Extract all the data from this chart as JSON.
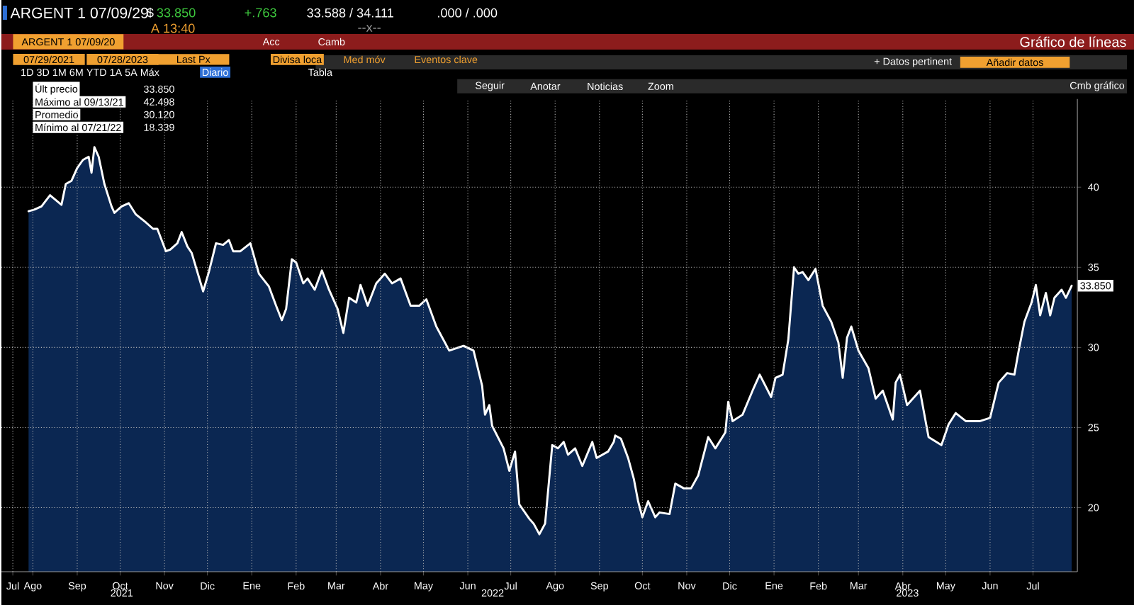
{
  "chart_data": {
    "type": "area",
    "title": "ARGENT 1 07/09/29",
    "subtitle": "Gráfico de líneas",
    "x": [
      "2021-07-29",
      "2021-08-02",
      "2021-08-07",
      "2021-08-13",
      "2021-08-17",
      "2021-08-21",
      "2021-08-24",
      "2021-08-28",
      "2021-09-01",
      "2021-09-05",
      "2021-09-09",
      "2021-09-11",
      "2021-09-13",
      "2021-09-16",
      "2021-09-20",
      "2021-09-25",
      "2021-09-27",
      "2021-10-02",
      "2021-10-07",
      "2021-10-12",
      "2021-10-19",
      "2021-10-24",
      "2021-10-27",
      "2021-11-02",
      "2021-11-05",
      "2021-11-10",
      "2021-11-13",
      "2021-11-17",
      "2021-11-20",
      "2021-11-28",
      "2021-12-02",
      "2021-12-07",
      "2021-12-12",
      "2021-12-16",
      "2021-12-19",
      "2021-12-24",
      "2021-12-31",
      "2022-01-06",
      "2022-01-13",
      "2022-01-18",
      "2022-01-22",
      "2022-01-25",
      "2022-01-29",
      "2022-02-01",
      "2022-02-06",
      "2022-02-09",
      "2022-02-14",
      "2022-02-19",
      "2022-02-24",
      "2022-03-02",
      "2022-03-06",
      "2022-03-10",
      "2022-03-15",
      "2022-03-18",
      "2022-03-23",
      "2022-03-29",
      "2022-04-04",
      "2022-04-09",
      "2022-04-15",
      "2022-04-22",
      "2022-04-28",
      "2022-05-03",
      "2022-05-10",
      "2022-05-19",
      "2022-05-29",
      "2022-06-05",
      "2022-06-11",
      "2022-06-13",
      "2022-06-16",
      "2022-06-18",
      "2022-06-26",
      "2022-06-30",
      "2022-07-04",
      "2022-07-07",
      "2022-07-14",
      "2022-07-17",
      "2022-07-21",
      "2022-07-25",
      "2022-07-30",
      "2022-08-03",
      "2022-08-07",
      "2022-08-10",
      "2022-08-15",
      "2022-08-20",
      "2022-08-27",
      "2022-08-30",
      "2022-09-07",
      "2022-09-11",
      "2022-09-12",
      "2022-09-16",
      "2022-09-21",
      "2022-09-25",
      "2022-09-28",
      "2022-10-01",
      "2022-10-05",
      "2022-10-10",
      "2022-10-13",
      "2022-10-20",
      "2022-10-24",
      "2022-10-30",
      "2022-11-04",
      "2022-11-09",
      "2022-11-16",
      "2022-11-21",
      "2022-11-28",
      "2022-11-30",
      "2022-12-03",
      "2022-12-10",
      "2022-12-17",
      "2022-12-22",
      "2022-12-30",
      "2023-01-02",
      "2023-01-07",
      "2023-01-11",
      "2023-01-15",
      "2023-01-18",
      "2023-01-21",
      "2023-01-25",
      "2023-01-30",
      "2023-02-04",
      "2023-02-10",
      "2023-02-15",
      "2023-02-18",
      "2023-02-21",
      "2023-02-24",
      "2023-03-01",
      "2023-03-08",
      "2023-03-13",
      "2023-03-18",
      "2023-03-25",
      "2023-03-27",
      "2023-03-30",
      "2023-04-04",
      "2023-04-13",
      "2023-04-19",
      "2023-04-28",
      "2023-05-03",
      "2023-05-08",
      "2023-05-15",
      "2023-05-25",
      "2023-06-01",
      "2023-06-07",
      "2023-06-13",
      "2023-06-18",
      "2023-06-21",
      "2023-06-25",
      "2023-06-30",
      "2023-07-03",
      "2023-07-06",
      "2023-07-10",
      "2023-07-13",
      "2023-07-16",
      "2023-07-21",
      "2023-07-24",
      "2023-07-28"
    ],
    "series": [
      {
        "color": "#0b2752",
        "values": [
          38.5,
          38.6,
          38.8,
          39.5,
          39.2,
          38.9,
          40.2,
          40.4,
          41.2,
          41.7,
          41.9,
          40.9,
          42.498,
          41.9,
          40.2,
          38.8,
          38.4,
          38.8,
          39.0,
          38.3,
          37.8,
          37.4,
          37.4,
          36.0,
          36.1,
          36.5,
          37.2,
          36.3,
          35.9,
          33.5,
          34.7,
          36.5,
          36.4,
          36.7,
          36.0,
          36.0,
          36.5,
          34.6,
          33.8,
          32.6,
          31.7,
          32.4,
          35.5,
          35.3,
          34.0,
          34.3,
          33.6,
          34.8,
          33.6,
          32.4,
          30.9,
          33.1,
          32.8,
          33.9,
          32.6,
          34.0,
          34.6,
          34.0,
          34.3,
          32.6,
          32.6,
          33.0,
          31.3,
          29.8,
          30.1,
          29.8,
          27.6,
          25.8,
          26.4,
          25.1,
          23.7,
          22.3,
          23.5,
          20.2,
          19.3,
          19.0,
          18.339,
          19.0,
          23.9,
          23.7,
          24.1,
          23.3,
          23.7,
          22.6,
          24.1,
          23.1,
          23.5,
          24.1,
          24.5,
          24.3,
          23.1,
          21.8,
          20.4,
          19.4,
          20.4,
          19.4,
          19.7,
          19.6,
          21.5,
          21.2,
          21.2,
          22.0,
          24.4,
          23.7,
          24.7,
          26.6,
          25.4,
          25.8,
          27.3,
          28.3,
          26.9,
          28.1,
          28.3,
          30.5,
          35.0,
          34.6,
          34.7,
          34.2,
          34.9,
          32.6,
          31.6,
          30.3,
          28.1,
          30.6,
          31.3,
          29.8,
          28.7,
          26.8,
          27.3,
          25.5,
          27.8,
          28.3,
          26.4,
          27.3,
          24.4,
          23.9,
          25.2,
          25.9,
          25.4,
          25.4,
          25.6,
          27.8,
          28.4,
          28.3,
          29.8,
          31.6,
          32.8,
          33.9,
          32.0,
          33.4,
          32.0,
          33.1,
          33.6,
          33.1,
          33.85
        ]
      }
    ],
    "xlim": [
      "2021-07-10",
      "2023-08-01"
    ],
    "xticks": [
      {
        "value": "2021-07-18",
        "label": "Jul"
      },
      {
        "value": "2021-08-01",
        "label": "Ago"
      },
      {
        "value": "2021-09-01",
        "label": "Sep"
      },
      {
        "value": "2021-10-01",
        "label": "Oct"
      },
      {
        "value": "2021-11-01",
        "label": "Nov"
      },
      {
        "value": "2021-12-01",
        "label": "Dic"
      },
      {
        "value": "2022-01-01",
        "label": "Ene"
      },
      {
        "value": "2022-02-01",
        "label": "Feb"
      },
      {
        "value": "2022-03-01",
        "label": "Mar"
      },
      {
        "value": "2022-04-01",
        "label": "Abr"
      },
      {
        "value": "2022-05-01",
        "label": "May"
      },
      {
        "value": "2022-06-01",
        "label": "Jun"
      },
      {
        "value": "2022-07-01",
        "label": "Jul"
      },
      {
        "value": "2022-08-01",
        "label": "Ago"
      },
      {
        "value": "2022-09-01",
        "label": "Sep"
      },
      {
        "value": "2022-10-01",
        "label": "Oct"
      },
      {
        "value": "2022-11-01",
        "label": "Nov"
      },
      {
        "value": "2022-12-01",
        "label": "Dic"
      },
      {
        "value": "2023-01-01",
        "label": "Ene"
      },
      {
        "value": "2023-02-01",
        "label": "Feb"
      },
      {
        "value": "2023-03-01",
        "label": "Mar"
      },
      {
        "value": "2023-04-01",
        "label": "Abr"
      },
      {
        "value": "2023-05-01",
        "label": "May"
      },
      {
        "value": "2023-06-01",
        "label": "Jun"
      },
      {
        "value": "2023-07-01",
        "label": "Jul"
      }
    ],
    "ylim": [
      16,
      45.5
    ],
    "yticks": [
      20,
      25,
      30,
      35,
      40
    ],
    "grid": true,
    "annotations": [
      "$",
      "33.850",
      "+.763",
      "33.588 / 34.111",
      ".000 / .000",
      "A 13:40",
      "--x--",
      "ARGENT 1 07/09/20",
      "Acc",
      "Camb",
      "07/29/2021",
      "07/28/2023",
      "Last Px",
      "Divisa loca",
      "Med móv",
      "Eventos clave",
      "1D   3D   1M   6M   YTD   1A   5A   Máx",
      "Diario",
      "Tabla",
      "Seguir",
      "Anotar",
      "Noticias",
      "Zoom",
      "+ Datos pertinent",
      "Añadir datos",
      "Cmb gráfico",
      "Últ precio",
      "33.850",
      "Máximo al 09/13/21",
      "42.498",
      "Promedio",
      "30.120",
      "Mínimo al 07/21/22",
      "18.339",
      "2021",
      "2022",
      "2023",
      {
        "text": "33.850",
        "x": "2023-07-28",
        "y": 33.85
      }
    ]
  }
}
